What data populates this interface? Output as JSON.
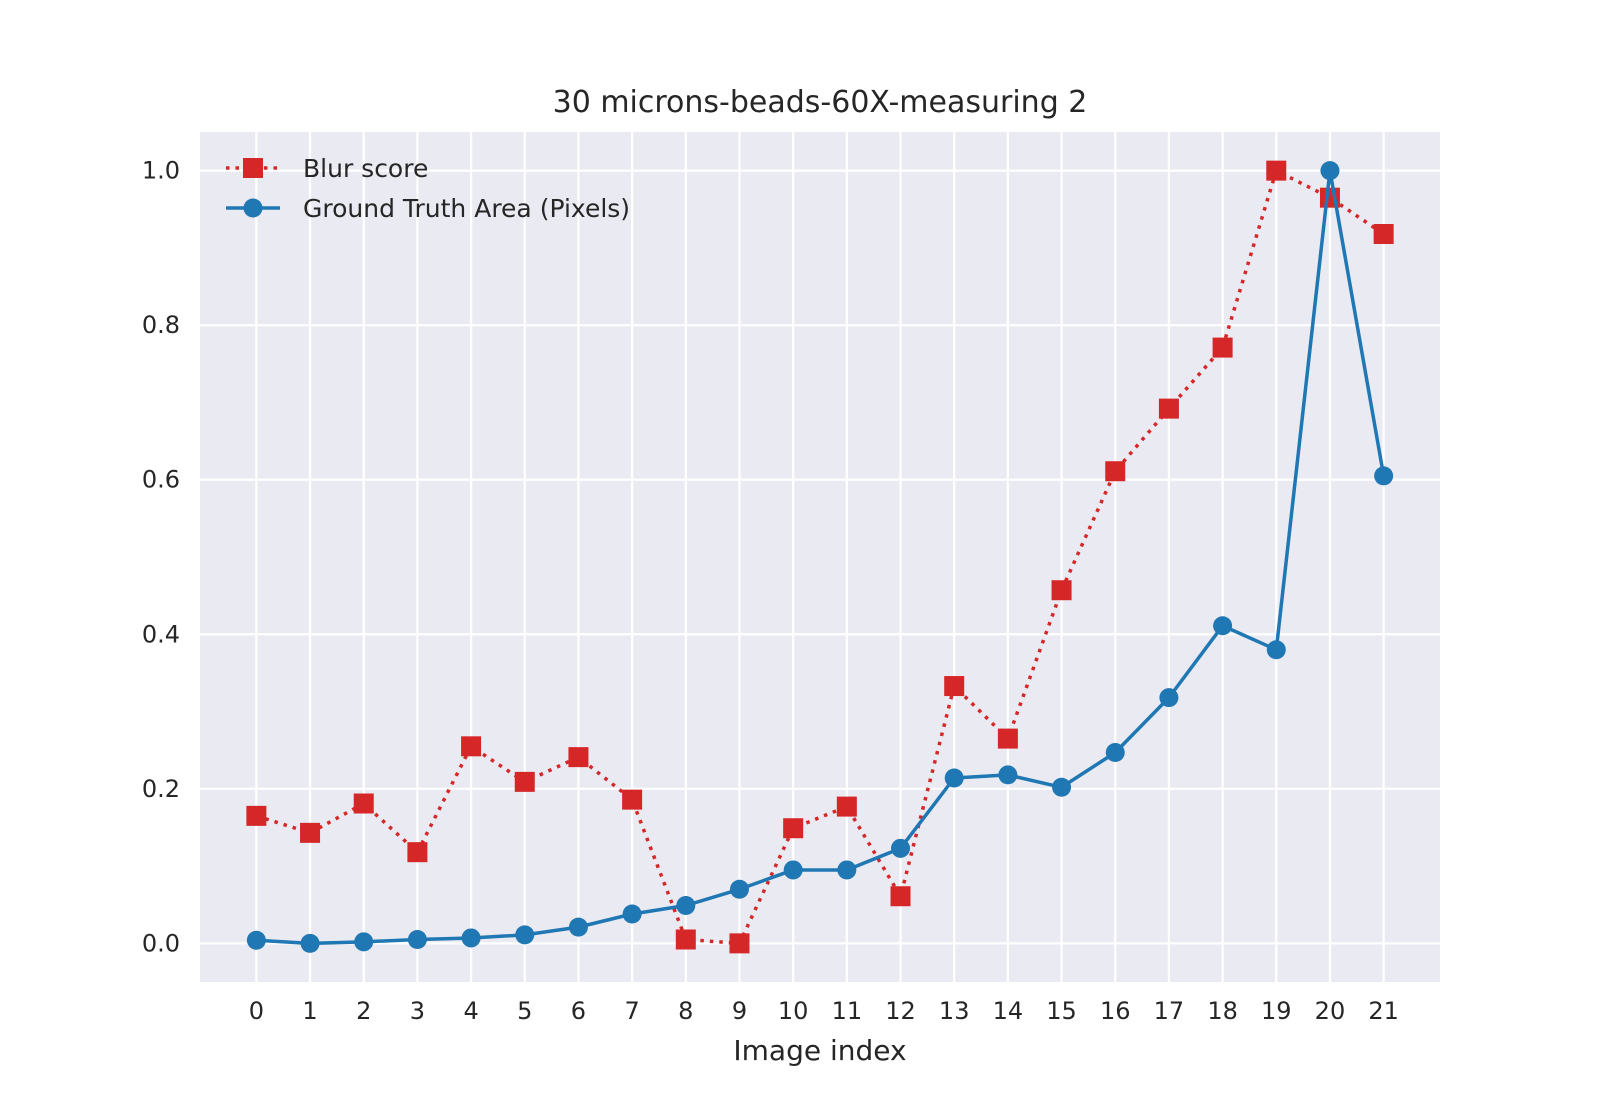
{
  "chart_data": {
    "type": "line",
    "title": "30 microns-beads-60X-measuring 2",
    "xlabel": "Image index",
    "ylabel": "",
    "x": [
      0,
      1,
      2,
      3,
      4,
      5,
      6,
      7,
      8,
      9,
      10,
      11,
      12,
      13,
      14,
      15,
      16,
      17,
      18,
      19,
      20,
      21
    ],
    "xlim": [
      -1.05,
      22.05
    ],
    "ylim": [
      -0.05,
      1.05
    ],
    "yticks": [
      0.0,
      0.2,
      0.4,
      0.6,
      0.8,
      1.0
    ],
    "ytick_labels": [
      "0.0",
      "0.2",
      "0.4",
      "0.6",
      "0.8",
      "1.0"
    ],
    "grid": true,
    "legend_position": "top-left",
    "background": "#EAEAF2",
    "series": [
      {
        "name": "Blur score",
        "color": "#D62728",
        "marker": "square",
        "line_style": "dotted",
        "values": [
          0.165,
          0.143,
          0.181,
          0.118,
          0.255,
          0.209,
          0.241,
          0.186,
          0.005,
          0.0,
          0.149,
          0.177,
          0.061,
          0.333,
          0.265,
          0.457,
          0.611,
          0.692,
          0.771,
          1.0,
          0.965,
          0.918
        ]
      },
      {
        "name": "Ground Truth Area (Pixels)",
        "color": "#1F77B4",
        "marker": "circle",
        "line_style": "solid",
        "values": [
          0.004,
          0.0,
          0.002,
          0.005,
          0.007,
          0.011,
          0.021,
          0.038,
          0.049,
          0.07,
          0.095,
          0.095,
          0.123,
          0.214,
          0.218,
          0.202,
          0.247,
          0.318,
          0.411,
          0.38,
          1.0,
          0.605
        ]
      }
    ]
  }
}
